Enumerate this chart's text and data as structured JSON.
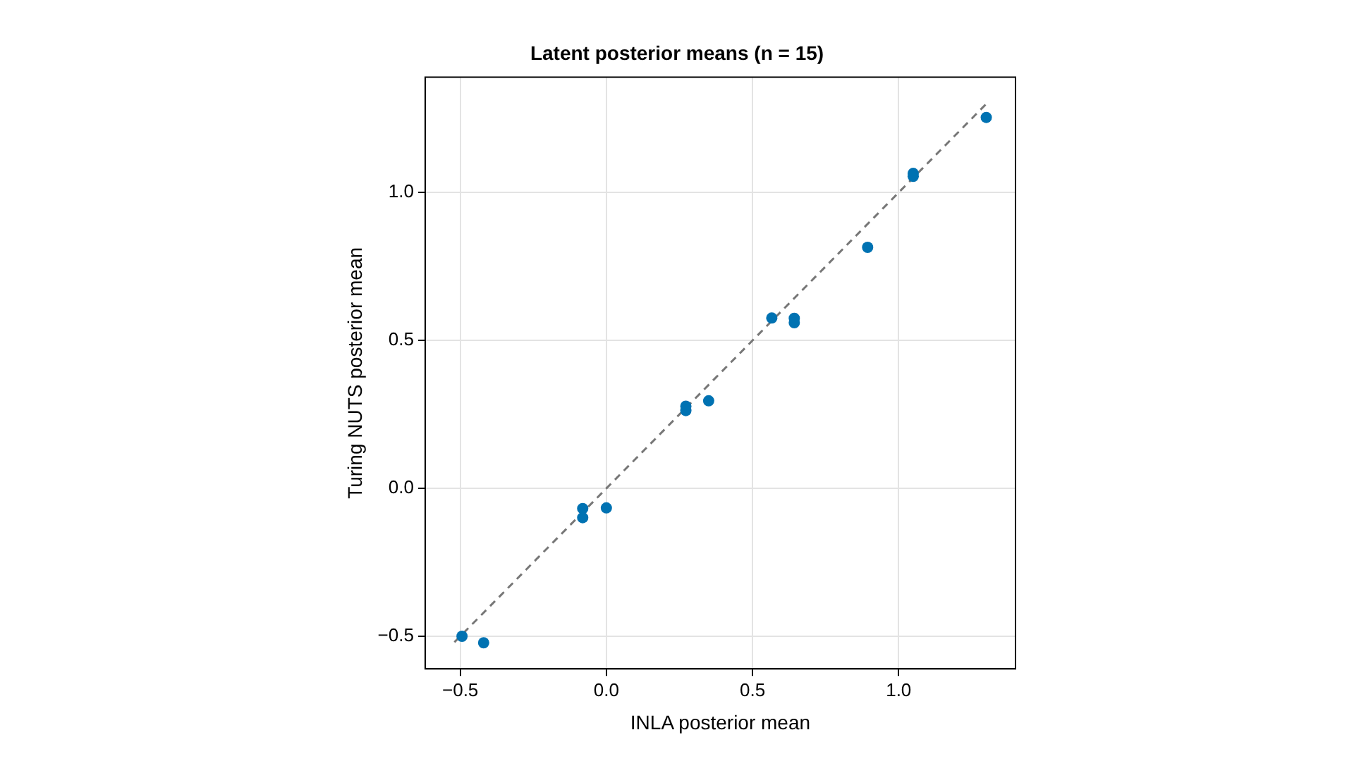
{
  "chart_data": {
    "type": "scatter",
    "title": "Latent posterior means (n = 15)",
    "xlabel": "INLA posterior mean",
    "ylabel": "Turing NUTS posterior mean",
    "series": [
      {
        "color": "#0072b2",
        "marker": "circle",
        "x": [
          1.3,
          1.05,
          1.05,
          0.894,
          0.566,
          0.643,
          0.643,
          0.272,
          0.272,
          0.35,
          -0.081,
          -0.081,
          0.0,
          -0.494,
          -0.42
        ],
        "values": [
          1.254,
          1.065,
          1.055,
          0.815,
          0.576,
          0.575,
          0.56,
          0.278,
          0.263,
          0.296,
          -0.068,
          -0.099,
          -0.066,
          -0.5,
          -0.522
        ]
      },
      {
        "type": "line",
        "color": "#777777",
        "line_style": "dashed",
        "marker": "none",
        "x": [
          -0.52,
          1.31
        ],
        "values": [
          -0.52,
          1.31
        ]
      }
    ],
    "xlim": [
      -0.62,
      1.4
    ],
    "ylim": [
      -0.61,
      1.39
    ],
    "xticks": [
      {
        "value": -0.5,
        "label": "−0.5"
      },
      {
        "value": 0,
        "label": "0.0"
      },
      {
        "value": 0.5,
        "label": "0.5"
      },
      {
        "value": 1,
        "label": "1.0"
      }
    ],
    "yticks": [
      {
        "value": -0.5,
        "label": "−0.5"
      },
      {
        "value": 0,
        "label": "0.0"
      },
      {
        "value": 0.5,
        "label": "0.5"
      },
      {
        "value": 1,
        "label": "1.0"
      }
    ],
    "grid": true,
    "legend": false
  }
}
